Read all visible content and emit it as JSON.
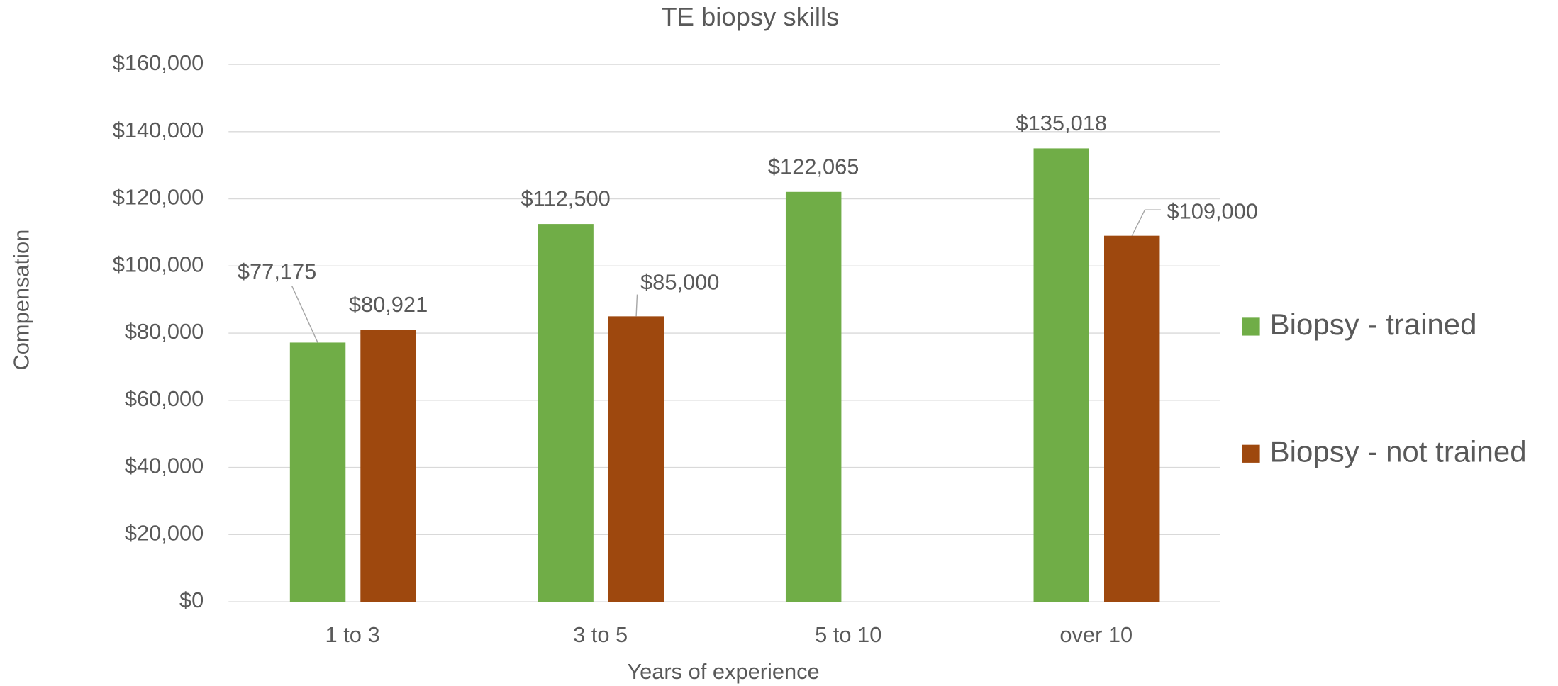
{
  "chart_data": {
    "type": "bar",
    "title": "TE biopsy skills",
    "xlabel": "Years of experience",
    "ylabel": "Compensation",
    "categories": [
      "1 to 3",
      "3 to 5",
      "5 to 10",
      "over 10"
    ],
    "series": [
      {
        "name": "Biopsy - trained",
        "color": "#70ad47",
        "values": [
          77175,
          112500,
          122065,
          135018
        ],
        "value_labels": [
          "$77,175",
          "$112,500",
          "$122,065",
          "$135,018"
        ]
      },
      {
        "name": "Biopsy - not trained",
        "color": "#9e480e",
        "values": [
          80921,
          85000,
          null,
          109000
        ],
        "value_labels": [
          "$80,921",
          "$85,000",
          null,
          "$109,000"
        ]
      }
    ],
    "ylim": [
      0,
      160000
    ],
    "yticks": [
      {
        "value": 0,
        "label": "$0"
      },
      {
        "value": 20000,
        "label": "$20,000"
      },
      {
        "value": 40000,
        "label": "$40,000"
      },
      {
        "value": 60000,
        "label": "$60,000"
      },
      {
        "value": 80000,
        "label": "$80,000"
      },
      {
        "value": 100000,
        "label": "$100,000"
      },
      {
        "value": 120000,
        "label": "$120,000"
      },
      {
        "value": 140000,
        "label": "$140,000"
      },
      {
        "value": 160000,
        "label": "$160,000"
      }
    ],
    "grid": true,
    "legend": "right"
  }
}
